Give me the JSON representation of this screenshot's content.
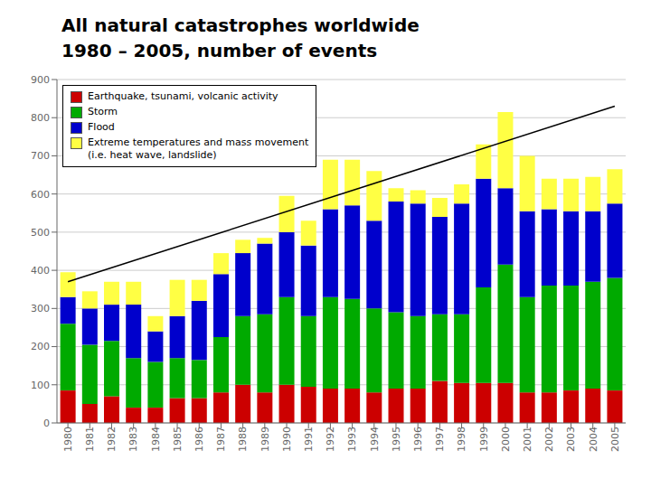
{
  "chart_data": {
    "type": "bar",
    "stacked": true,
    "title": "All natural catastrophes worldwide",
    "subtitle": "1980 – 2005, number of events",
    "categories": [
      "1980",
      "1981",
      "1982",
      "1983",
      "1984",
      "1985",
      "1986",
      "1987",
      "1988",
      "1989",
      "1990",
      "1991",
      "1992",
      "1993",
      "1994",
      "1995",
      "1996",
      "1997",
      "1998",
      "1999",
      "2000",
      "2001",
      "2002",
      "2003",
      "2004",
      "2005"
    ],
    "series": [
      {
        "name": "Earthquake, tsunami, volcanic activity",
        "color": "#cc0000",
        "values": [
          85,
          50,
          70,
          40,
          40,
          65,
          65,
          80,
          100,
          80,
          100,
          95,
          90,
          90,
          80,
          90,
          90,
          110,
          105,
          105,
          105,
          80,
          80,
          85,
          90,
          85
        ]
      },
      {
        "name": "Storm",
        "color": "#00aa00",
        "values": [
          175,
          155,
          145,
          130,
          120,
          105,
          100,
          145,
          180,
          205,
          230,
          185,
          240,
          235,
          220,
          200,
          190,
          175,
          180,
          250,
          310,
          250,
          280,
          275,
          280,
          295
        ]
      },
      {
        "name": "Flood",
        "color": "#0000cc",
        "values": [
          70,
          95,
          95,
          140,
          80,
          110,
          155,
          165,
          165,
          185,
          170,
          185,
          230,
          245,
          230,
          290,
          295,
          255,
          290,
          285,
          200,
          225,
          200,
          195,
          185,
          195
        ]
      },
      {
        "name": "Extreme temperatures and mass movement\n(i.e. heat wave, landslide)",
        "color": "#ffff44",
        "values": [
          65,
          45,
          60,
          60,
          40,
          95,
          55,
          55,
          35,
          15,
          95,
          65,
          130,
          120,
          130,
          35,
          35,
          50,
          50,
          90,
          200,
          145,
          80,
          85,
          90,
          90
        ]
      }
    ],
    "trend": [
      370,
      830
    ],
    "ylim": [
      0,
      900
    ],
    "yticks": [
      0,
      100,
      200,
      300,
      400,
      500,
      600,
      700,
      800,
      900
    ],
    "grid": true,
    "legend": "upper left"
  }
}
